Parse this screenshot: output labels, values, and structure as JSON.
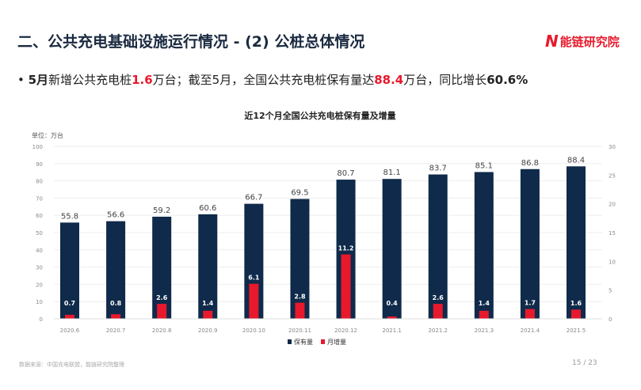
{
  "header": {
    "title": "二、公共充电基础设施运行情况 - (2) 公桩总体情况",
    "logo": "能链研究院"
  },
  "bullet": {
    "p1": "5月",
    "p2": "新增公共充电桩",
    "p3": "1.6",
    "p4": "万台；截至5月，全国公共充电桩保有量达",
    "p5": "88.4",
    "p6": "万台，同比增长",
    "p7": "60.6%"
  },
  "chart_data": {
    "type": "bar",
    "title": "近12个月全国公共充电桩保有量及增量",
    "unit_label": "单位：万台",
    "categories": [
      "2020.6",
      "2020.7",
      "2020.8",
      "2020.9",
      "2020.10",
      "2020.11",
      "2020.12",
      "2021.1",
      "2021.2",
      "2021.3",
      "2021.4",
      "2021.5"
    ],
    "series": [
      {
        "name": "保有量",
        "axis": "left",
        "color": "#0f2a4a",
        "values": [
          55.8,
          56.6,
          59.2,
          60.6,
          66.7,
          69.5,
          80.7,
          81.1,
          83.7,
          85.1,
          86.8,
          88.4
        ]
      },
      {
        "name": "月增量",
        "axis": "right",
        "color": "#e8192c",
        "values": [
          0.7,
          0.8,
          2.6,
          1.4,
          6.1,
          2.8,
          11.2,
          0.4,
          2.6,
          1.4,
          1.7,
          1.6
        ]
      }
    ],
    "ylim": [
      0,
      100
    ],
    "yticks": [
      0,
      10,
      20,
      30,
      40,
      50,
      60,
      70,
      80,
      90,
      100
    ],
    "y2lim": [
      0,
      30
    ],
    "y2ticks": [
      0,
      5,
      10,
      15,
      20,
      25,
      30
    ],
    "legend": "bottom"
  },
  "footer": {
    "source": "数据来源：中国充电联盟，能链研究院整理",
    "page": "15 / 23"
  }
}
